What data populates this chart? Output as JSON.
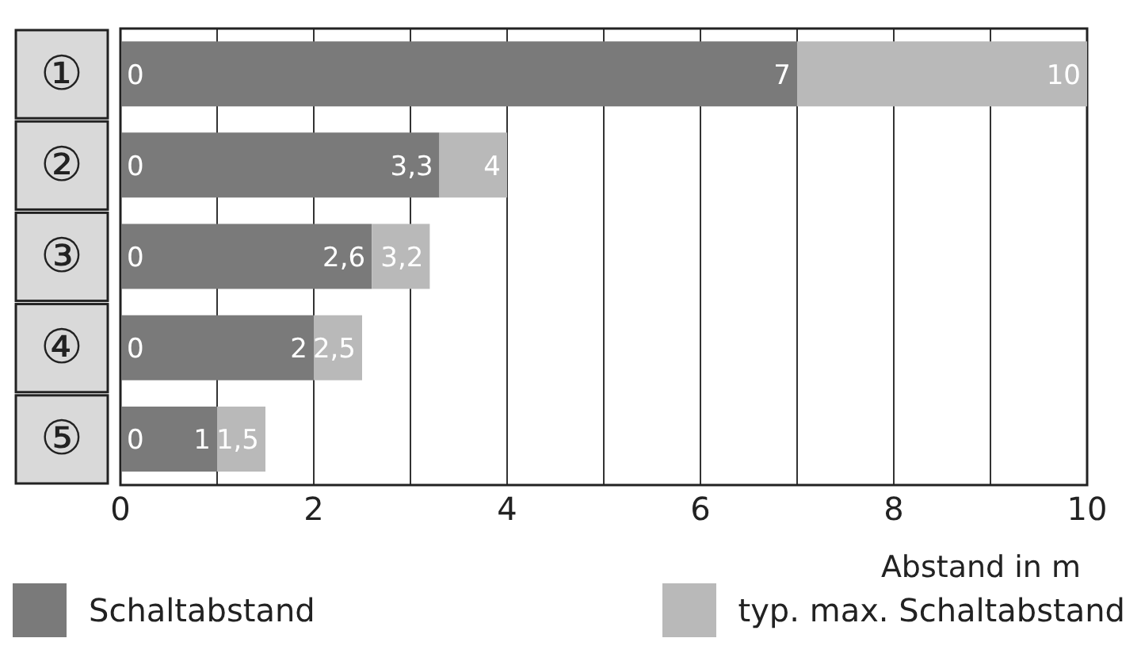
{
  "chart_data": {
    "type": "bar",
    "orientation": "horizontal",
    "stacked": true,
    "categories": [
      "①",
      "②",
      "③",
      "④",
      "⑤"
    ],
    "series": [
      {
        "name": "Schaltabstand",
        "color": "#7a7a7a",
        "values": [
          7,
          3.3,
          2.6,
          2,
          1
        ]
      },
      {
        "name": "typ. max. Schaltabstand",
        "color": "#b9b9b9",
        "values": [
          3,
          0.7,
          0.6,
          0.5,
          0.5
        ]
      }
    ],
    "xlim": [
      0,
      10
    ],
    "xticks": [
      0,
      {
        "value": 1,
        "label": null
      },
      2,
      {
        "value": 3,
        "label": null
      },
      4,
      {
        "value": 5,
        "label": null
      },
      6,
      {
        "value": 7,
        "label": null
      },
      8,
      {
        "value": 9,
        "label": null
      },
      10
    ],
    "xlabel": "Abstand in m",
    "grid": "x",
    "legend": "bottom",
    "annotations": [
      {
        "text": "0",
        "x": 0,
        "y": "①"
      },
      {
        "text": "0",
        "x": 0,
        "y": "②"
      },
      {
        "text": "0",
        "x": 0,
        "y": "③"
      },
      {
        "text": "0",
        "x": 0,
        "y": "④"
      },
      {
        "text": "0",
        "x": 0,
        "y": "⑤"
      },
      {
        "text": "7",
        "x": 7,
        "y": "①"
      },
      {
        "text": "3,3",
        "x": 3.3,
        "y": "②"
      },
      {
        "text": "2,6",
        "x": 2.6,
        "y": "③"
      },
      {
        "text": "2",
        "x": 2,
        "y": "④"
      },
      {
        "text": "1",
        "x": 1,
        "y": "⑤"
      },
      {
        "text": "10",
        "x": 10,
        "y": "①"
      },
      {
        "text": "4",
        "x": 4,
        "y": "②"
      },
      {
        "text": "3,2",
        "x": 3.2,
        "y": "③"
      },
      {
        "text": "2,5",
        "x": 2.5,
        "y": "④"
      },
      {
        "text": "1,5",
        "x": 1.5,
        "y": "⑤"
      }
    ]
  }
}
